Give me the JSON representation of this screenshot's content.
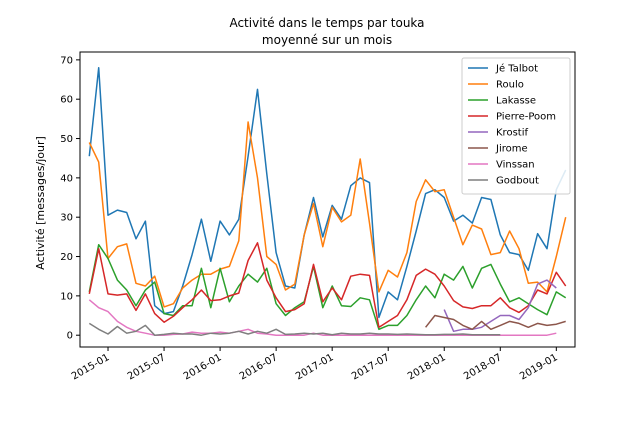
{
  "chart_data": {
    "type": "line",
    "title": [
      "Activité dans le temps par touka",
      "moyenné sur un mois"
    ],
    "xlabel": "",
    "ylabel": "Activité [messages/jour]",
    "ylim": [
      -3,
      72
    ],
    "yticks": [
      0,
      10,
      20,
      30,
      40,
      50,
      60,
      70
    ],
    "xticks": [
      "2015-01",
      "2015-07",
      "2016-01",
      "2016-07",
      "2017-01",
      "2017-07",
      "2018-01",
      "2018-07",
      "2019-01"
    ],
    "x_start": "2014-10",
    "x_end": "2019-03",
    "grid": false,
    "legend_position": "top-right",
    "series": [
      {
        "name": "Jé Talbot",
        "color": "#1f77b4",
        "start": "2014-11",
        "values": [
          45.5,
          68,
          30.5,
          31.8,
          31.2,
          24.5,
          29,
          7.5,
          5.5,
          6,
          12.5,
          20.5,
          29.5,
          18.8,
          29,
          25.5,
          29.5,
          45.5,
          62.5,
          41,
          21,
          12.5,
          12,
          25.5,
          35,
          25,
          33,
          29.5,
          38,
          40,
          38.8,
          4.5,
          11,
          9,
          17.5,
          26.5,
          36,
          37,
          35,
          29,
          30.5,
          28.5,
          35,
          34.5,
          25.5,
          21,
          20.5,
          16.5,
          25.8,
          22,
          37,
          42
        ]
      },
      {
        "name": "Roulo",
        "color": "#ff7f0e",
        "start": "2014-11",
        "values": [
          49,
          44,
          19.5,
          22.5,
          23.2,
          13.2,
          12.5,
          15,
          7.2,
          8,
          12,
          14,
          15.5,
          15.5,
          16.8,
          17.5,
          24,
          54.2,
          40,
          20,
          18,
          11.5,
          13,
          25.5,
          33.5,
          22.5,
          32.5,
          28.8,
          30.5,
          44.8,
          28.5,
          11,
          16.5,
          14.8,
          21,
          34,
          39.5,
          36.5,
          37,
          30,
          23,
          28,
          27,
          20.5,
          21,
          26.5,
          22,
          13.2,
          13.5,
          11,
          20,
          30
        ]
      },
      {
        "name": "Lakasse",
        "color": "#2ca02c",
        "start": "2014-11",
        "values": [
          11,
          23,
          19.5,
          14,
          11.5,
          7.5,
          11.5,
          13.5,
          5.5,
          5,
          7.5,
          7.5,
          17,
          7,
          17,
          8.5,
          12.5,
          15.5,
          13.5,
          17,
          8,
          5,
          7,
          8.5,
          17.5,
          7,
          12.5,
          7.5,
          7.3,
          9.5,
          9,
          1.5,
          2.5,
          2.5,
          5,
          9,
          12.5,
          9.5,
          15.5,
          14,
          17.5,
          12,
          17,
          18,
          13,
          8.5,
          9.5,
          8,
          6.5,
          5.2,
          11,
          9.5
        ]
      },
      {
        "name": "Pierre-Poom",
        "color": "#d62728",
        "start": "2014-11",
        "values": [
          10.5,
          22,
          10.5,
          10.2,
          10.5,
          6.3,
          10.5,
          5.5,
          3.3,
          4.8,
          7,
          9,
          11.5,
          8.8,
          9,
          10,
          10.7,
          19,
          23.5,
          14,
          9.5,
          6,
          6.5,
          8,
          18,
          8.5,
          12,
          9,
          15,
          15.5,
          15.2,
          2,
          3.5,
          5,
          9,
          15.2,
          16.8,
          15.5,
          12.5,
          8.8,
          7.2,
          6.8,
          7.5,
          7.5,
          9.5,
          7,
          5.8,
          7.5,
          11.5,
          10.5,
          16,
          12.5
        ]
      },
      {
        "name": "Krostif",
        "color": "#9467bd",
        "start": "2018-01",
        "values": [
          6.5,
          1,
          1.5,
          1.5,
          2,
          3.5,
          5,
          5,
          4,
          7,
          13,
          14,
          12
        ]
      },
      {
        "name": "Jirome",
        "color": "#8c564b",
        "start": "2017-11",
        "values": [
          2,
          5,
          4.5,
          4,
          2.5,
          1.5,
          3.5,
          1.5,
          2.5,
          3.5,
          3,
          2,
          3,
          2.5,
          2.8,
          3.5
        ]
      },
      {
        "name": "Vinssan",
        "color": "#e377c2",
        "start": "2014-11",
        "values": [
          9,
          7,
          6,
          3.5,
          2,
          1,
          0.5,
          0,
          0,
          0.2,
          0.3,
          0.8,
          0.5,
          0.5,
          0.8,
          0.5,
          1,
          1.5,
          0.5,
          0.3,
          0,
          0,
          0,
          0,
          0.5,
          0,
          0,
          0,
          0,
          0,
          0,
          0,
          0,
          0,
          0,
          0,
          0,
          0,
          0,
          0,
          0,
          0,
          0,
          0,
          0,
          0,
          0,
          0,
          0,
          0,
          0.5
        ]
      },
      {
        "name": "Godbout",
        "color": "#7f7f7f",
        "start": "2014-11",
        "values": [
          3,
          1.5,
          0.3,
          2.2,
          0.5,
          1,
          2.5,
          0,
          0.2,
          0.5,
          0.3,
          0.3,
          0,
          0.5,
          0.3,
          0.5,
          1,
          0.3,
          1,
          0.5,
          1.5,
          0.2,
          0.3,
          0.5,
          0.3,
          0.5,
          0.1,
          0.5,
          0.3,
          0.3,
          0.5,
          0.3,
          0.3,
          0.2,
          0.3,
          0.2,
          0.1,
          0.1,
          0.2,
          0.2,
          0.3,
          0.1,
          0.1,
          0.1,
          0.1
        ]
      }
    ]
  }
}
